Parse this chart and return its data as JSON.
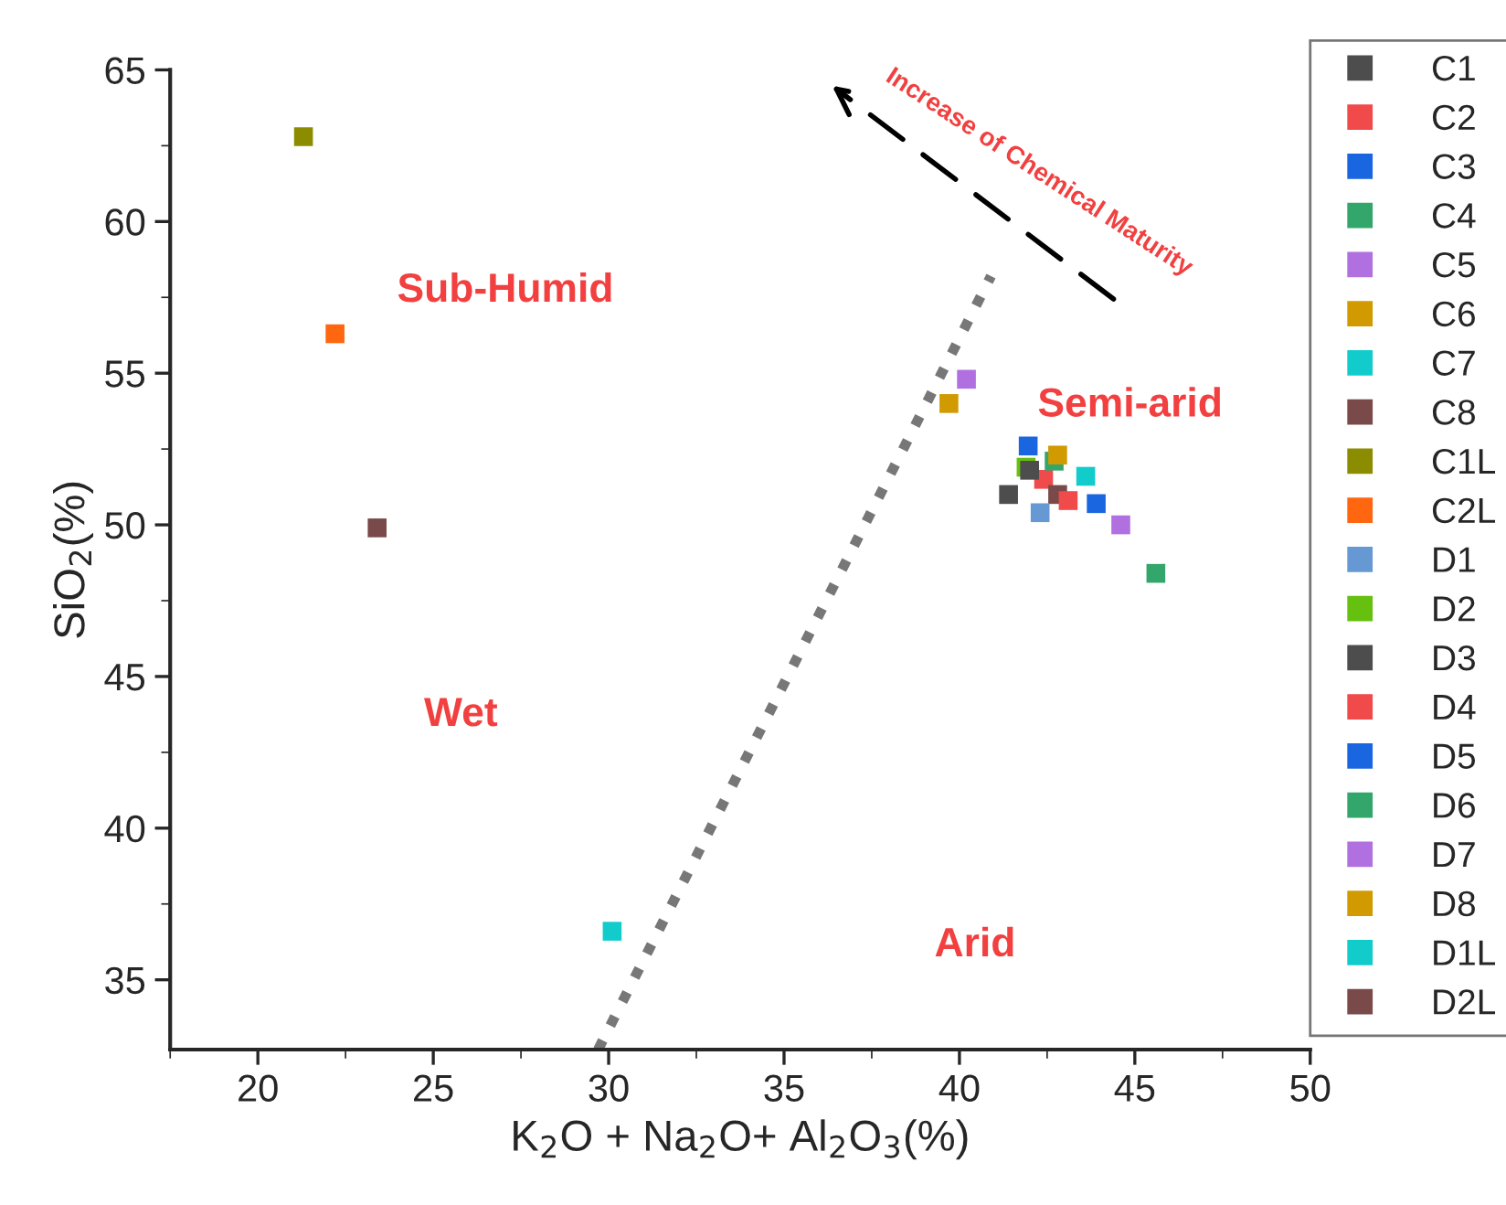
{
  "chart_data": {
    "type": "scatter",
    "xlabel": "K$_{2}$O + Na$_{2}$O+ Al$_{2}$O$_{3}$(%)",
    "ylabel": "SiO$_{2}$(%)",
    "xlim": [
      17.5,
      50
    ],
    "ylim": [
      32.7,
      65
    ],
    "xticks": [
      20,
      25,
      30,
      35,
      40,
      45,
      50
    ],
    "yticks": [
      35,
      40,
      45,
      50,
      55,
      60,
      65
    ],
    "marker": "square",
    "legend": "right",
    "grid": false,
    "series": [
      {
        "name": "C1",
        "color": "#4d4d4d",
        "x": [
          41.4
        ],
        "values": [
          51.0
        ]
      },
      {
        "name": "C2",
        "color": "#f04a4a",
        "x": [
          42.4
        ],
        "values": [
          51.5
        ]
      },
      {
        "name": "C3",
        "color": "#1a66e0",
        "x": [
          41.96
        ],
        "values": [
          52.6
        ]
      },
      {
        "name": "C4",
        "color": "#33a66b",
        "x": [
          45.6
        ],
        "values": [
          48.4
        ]
      },
      {
        "name": "C5",
        "color": "#b070e0",
        "x": [
          40.2
        ],
        "values": [
          54.8
        ]
      },
      {
        "name": "C6",
        "color": "#d19a00",
        "x": [
          39.7
        ],
        "values": [
          54.0
        ]
      },
      {
        "name": "C7",
        "color": "#12cccc",
        "x": [
          43.6
        ],
        "values": [
          51.6
        ]
      },
      {
        "name": "C8",
        "color": "#7a4a4a",
        "x": [
          42.8
        ],
        "values": [
          51.0
        ]
      },
      {
        "name": "C1L",
        "color": "#8c8c00",
        "x": [
          21.3
        ],
        "values": [
          62.8
        ]
      },
      {
        "name": "C2L",
        "color": "#ff6610",
        "x": [
          22.2
        ],
        "values": [
          56.3
        ]
      },
      {
        "name": "D1",
        "color": "#6699d4",
        "x": [
          42.3
        ],
        "values": [
          50.4
        ]
      },
      {
        "name": "D2",
        "color": "#66c010",
        "x": [
          41.9
        ],
        "values": [
          51.9
        ]
      },
      {
        "name": "D3",
        "color": "#4d4d4d",
        "x": [
          42.0
        ],
        "values": [
          51.8
        ]
      },
      {
        "name": "D4",
        "color": "#f04a4a",
        "x": [
          43.1
        ],
        "values": [
          50.8
        ]
      },
      {
        "name": "D5",
        "color": "#1a66e0",
        "x": [
          43.9
        ],
        "values": [
          50.7
        ]
      },
      {
        "name": "D6",
        "color": "#33a66b",
        "x": [
          42.7
        ],
        "values": [
          52.1
        ]
      },
      {
        "name": "D7",
        "color": "#b070e0",
        "x": [
          44.6
        ],
        "values": [
          50.0
        ]
      },
      {
        "name": "D8",
        "color": "#d19a00",
        "x": [
          42.8
        ],
        "values": [
          52.3
        ]
      },
      {
        "name": "D1L",
        "color": "#12cccc",
        "x": [
          30.1
        ],
        "values": [
          36.6
        ]
      },
      {
        "name": "D2L",
        "color": "#7a4a4a",
        "x": [
          23.4
        ],
        "values": [
          49.9
        ]
      },
      {
        "type": "line",
        "color": "#777777",
        "line_style": "dotted",
        "marker": "none",
        "x": [
          29.7,
          40.9
        ],
        "values": [
          32.7,
          58.2
        ]
      }
    ],
    "annotations": [
      "Sub-Humid",
      "Semi-arid",
      "Wet",
      "Arid",
      "Increase of Chemical Maturity"
    ]
  }
}
